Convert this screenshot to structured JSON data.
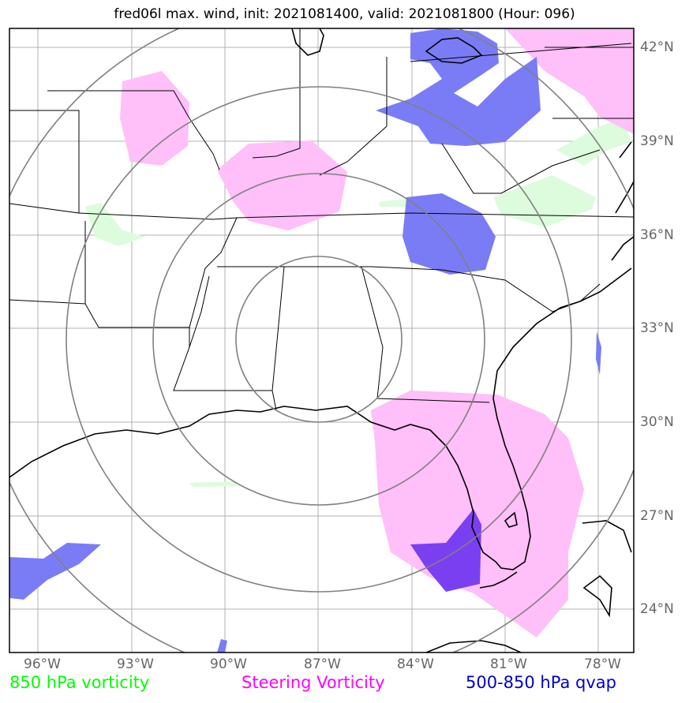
{
  "title": "fred06l max. wind, init: 2021081400, valid: 2021081800 (Hour: 096)",
  "lat_labels": [
    "42°N",
    "39°N",
    "36°N",
    "33°N",
    "30°N",
    "27°N",
    "24°N"
  ],
  "lon_labels": [
    "96°W",
    "93°W",
    "90°W",
    "87°W",
    "84°W",
    "81°W",
    "78°W"
  ],
  "legend": {
    "vorticity_850": {
      "label": "850 hPa vorticity",
      "color": "#00ff00"
    },
    "steering": {
      "label": "Steering Vorticity",
      "color": "#ff00ff"
    },
    "qvap": {
      "label": "500-850 hPa qvap",
      "color": "#0000cc"
    }
  },
  "colors": {
    "steering_fill": "#ffbff8",
    "qvap_fill": "#7a7cf6",
    "vort_fill": "#ddfbdd",
    "overlap_fill": "#7b3ff2",
    "range_rings": "#808080",
    "grid": "#b0b0b0",
    "coast": "#000000"
  }
}
